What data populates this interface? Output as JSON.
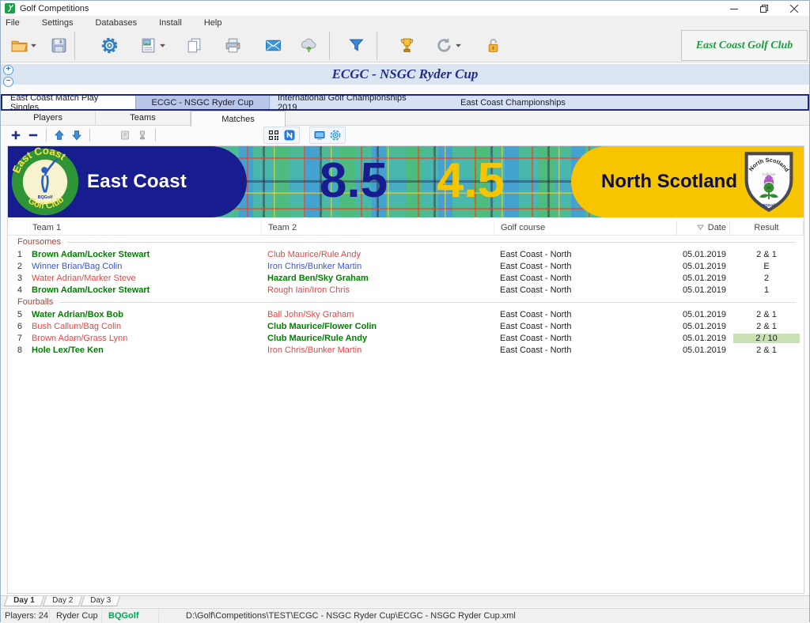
{
  "window": {
    "title": "Golf Competitions"
  },
  "menu": {
    "items": [
      "File",
      "Settings",
      "Databases",
      "Install",
      "Help"
    ]
  },
  "toolbar": {
    "club_label": "East Coast Golf Club"
  },
  "banner": {
    "title": "ECGC - NSGC Ryder Cup",
    "expand_glyph": "+",
    "collapse_glyph": "−"
  },
  "competition_tabs": [
    {
      "label": "East Coast Match Play Singles",
      "style": "white"
    },
    {
      "label": "ECGC - NSGC Ryder Cup",
      "style": "selected"
    },
    {
      "label": "International Golf Championships 2019",
      "style": "plain3"
    },
    {
      "label": "East Coast Championships",
      "style": "plain4"
    }
  ],
  "view_tabs": [
    {
      "label": "Players",
      "selected": false
    },
    {
      "label": "Teams",
      "selected": false
    },
    {
      "label": "Matches",
      "selected": true
    }
  ],
  "scoreboard": {
    "home": {
      "name": "East Coast",
      "score": "8.5",
      "logo_arc_top": "East Coast",
      "logo_arc_bottom": "Golf Club",
      "logo_brand": "BQGolf"
    },
    "away": {
      "name": "North Scotland",
      "score": "4.5",
      "logo_title": "North Scotland",
      "logo_subtitle": "Golf Club",
      "logo_brand": "BQGolf"
    }
  },
  "colors": {
    "navy": "#171d8e",
    "gold": "#f7c500",
    "winner_green": "#008000",
    "loser_red": "#e04848",
    "tie_blue": "#3a56c8",
    "brand_green": "#00a651",
    "result_highlight": "#c9e0b3"
  },
  "table": {
    "columns": [
      "Team 1",
      "Team 2",
      "Golf course",
      "Date",
      "Result"
    ],
    "groups": [
      {
        "name": "Foursomes",
        "rows": [
          {
            "no": "1",
            "team1": {
              "text": "Brown Adam/Locker Stewart",
              "color": "green"
            },
            "team2": {
              "text": "Club Maurice/Rule Andy",
              "color": "red"
            },
            "course": "East Coast - North",
            "date": "05.01.2019",
            "result": "2 & 1",
            "result_highlight": false
          },
          {
            "no": "2",
            "team1": {
              "text": "Winner Brian/Bag Colin",
              "color": "blue"
            },
            "team2": {
              "text": "Iron Chris/Bunker Martin",
              "color": "blue"
            },
            "course": "East Coast - North",
            "date": "05.01.2019",
            "result": "E",
            "result_highlight": false
          },
          {
            "no": "3",
            "team1": {
              "text": "Water Adrian/Marker Steve",
              "color": "red"
            },
            "team2": {
              "text": "Hazard Ben/Sky Graham",
              "color": "green"
            },
            "course": "East Coast - North",
            "date": "05.01.2019",
            "result": "2",
            "result_highlight": false
          },
          {
            "no": "4",
            "team1": {
              "text": "Brown Adam/Locker Stewart",
              "color": "green"
            },
            "team2": {
              "text": "Rough Iain/Iron Chris",
              "color": "red"
            },
            "course": "East Coast - North",
            "date": "05.01.2019",
            "result": "1",
            "result_highlight": false
          }
        ]
      },
      {
        "name": "Fourballs",
        "rows": [
          {
            "no": "5",
            "team1": {
              "text": "Water Adrian/Box Bob",
              "color": "green"
            },
            "team2": {
              "text": "Ball John/Sky Graham",
              "color": "red"
            },
            "course": "East Coast - North",
            "date": "05.01.2019",
            "result": "2 & 1",
            "result_highlight": false
          },
          {
            "no": "6",
            "team1": {
              "text": "Bush Callum/Bag Colin",
              "color": "red"
            },
            "team2": {
              "text": "Club Maurice/Flower Colin",
              "color": "green"
            },
            "course": "East Coast - North",
            "date": "05.01.2019",
            "result": "2 & 1",
            "result_highlight": false
          },
          {
            "no": "7",
            "team1": {
              "text": "Brown Adam/Grass Lynn",
              "color": "red"
            },
            "team2": {
              "text": "Club Maurice/Rule Andy",
              "color": "green"
            },
            "course": "East Coast - North",
            "date": "05.01.2019",
            "result": "2 / 10",
            "result_highlight": true
          },
          {
            "no": "8",
            "team1": {
              "text": "Hole Lex/Tee Ken",
              "color": "green"
            },
            "team2": {
              "text": "Iron Chris/Bunker Martin",
              "color": "red"
            },
            "course": "East Coast - North",
            "date": "05.01.2019",
            "result": "2 & 1",
            "result_highlight": false
          }
        ]
      }
    ]
  },
  "day_tabs": {
    "labels": [
      "Day 1",
      "Day 2",
      "Day 3"
    ],
    "active": "Day 1"
  },
  "status": {
    "players": "Players: 24",
    "competition": "Ryder Cup",
    "brand": "BQGolf",
    "file_path": "D:\\Golf\\Competitions\\TEST\\ECGC - NSGC Ryder Cup\\ECGC - NSGC Ryder Cup.xml"
  }
}
